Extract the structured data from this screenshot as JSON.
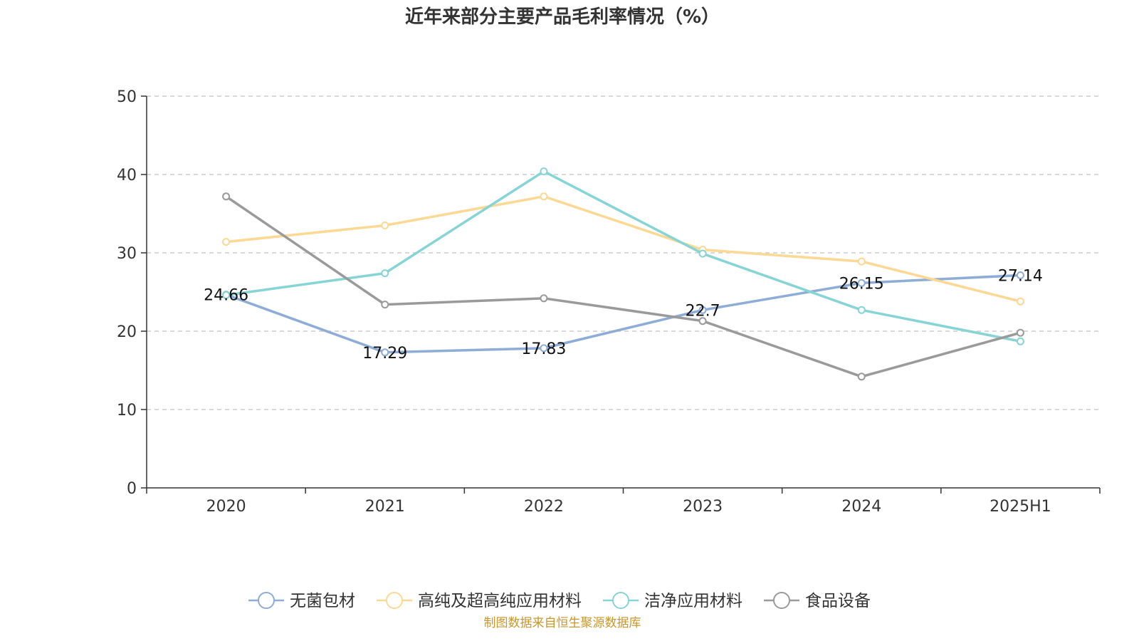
{
  "chart_data": {
    "type": "line",
    "title": "近年来部分主要产品毛利率情况（%）",
    "categories": [
      "2020",
      "2021",
      "2022",
      "2023",
      "2024",
      "2025H1"
    ],
    "ylim": [
      0,
      50
    ],
    "yticks": [
      0,
      10,
      20,
      30,
      40,
      50
    ],
    "grid": true,
    "legend_position": "bottom",
    "series": [
      {
        "name": "无菌包材",
        "color": "#8eacd6",
        "values": [
          24.66,
          17.29,
          17.83,
          22.7,
          26.15,
          27.14
        ],
        "show_labels": true
      },
      {
        "name": "高纯及超高纯应用材料",
        "color": "#fbd893",
        "values": [
          31.4,
          33.5,
          37.2,
          30.4,
          28.9,
          23.8
        ],
        "show_labels": false
      },
      {
        "name": "洁净应用材料",
        "color": "#86d4d4",
        "values": [
          24.6,
          27.4,
          40.4,
          29.9,
          22.7,
          18.7
        ],
        "show_labels": false
      },
      {
        "name": "食品设备",
        "color": "#9a9a9a",
        "values": [
          37.2,
          23.4,
          24.2,
          21.3,
          14.2,
          19.8
        ],
        "show_labels": false
      }
    ],
    "data_labels": [
      "24.66",
      "17.29",
      "17.83",
      "22.7",
      "26.15",
      "27.14"
    ]
  },
  "source": "制图数据来自恒生聚源数据库"
}
